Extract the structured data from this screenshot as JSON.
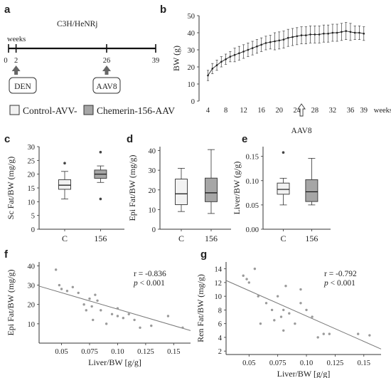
{
  "figure": {
    "panel_labels": [
      "a",
      "b",
      "c",
      "d",
      "e",
      "f",
      "g"
    ],
    "timeline": {
      "title": "C3H/HeNRj",
      "unit_label": "weeks",
      "ticks": [
        0,
        2,
        26,
        39
      ],
      "events": [
        {
          "week": 2,
          "label": "DEN"
        },
        {
          "week": 26,
          "label": "AAV8"
        }
      ]
    },
    "legend": {
      "items": [
        {
          "label": "Control-AVV-",
          "color": "#f2f2f2"
        },
        {
          "label": "Chemerin-156-AAV",
          "color": "#a6a6a6"
        }
      ]
    }
  },
  "chart_data": [
    {
      "panel": "b",
      "type": "line",
      "ylabel": "BW (g)",
      "xlabel": "weeks",
      "x_ticks": [
        4,
        8,
        12,
        16,
        20,
        24,
        28,
        32,
        36,
        39
      ],
      "y_ticks": [
        0,
        10,
        20,
        30,
        40,
        50
      ],
      "xlim": [
        2,
        40
      ],
      "ylim": [
        0,
        50
      ],
      "annotation": "AAV8",
      "annotation_x": 25,
      "x": [
        4,
        5,
        6,
        7,
        8,
        9,
        10,
        11,
        12,
        13,
        14,
        15,
        16,
        17,
        18,
        19,
        20,
        21,
        22,
        23,
        24,
        25,
        26,
        27,
        28,
        29,
        30,
        31,
        32,
        33,
        34,
        35,
        36,
        37,
        38,
        39
      ],
      "series": [
        {
          "values": [
            15,
            19,
            21,
            23,
            24.5,
            26,
            27,
            28,
            29,
            30,
            31,
            32,
            33,
            34,
            34.5,
            35,
            35.5,
            36,
            37,
            37.5,
            38,
            38.5,
            38.5,
            39,
            39,
            39,
            39.5,
            39.5,
            40,
            40,
            40.5,
            41,
            40.5,
            40,
            40,
            39.5
          ],
          "errors": [
            3,
            3,
            3,
            3,
            3,
            3,
            4,
            4,
            4,
            4,
            4,
            4,
            4,
            4,
            4,
            5,
            5,
            5,
            5,
            5,
            5,
            5,
            5,
            5,
            5,
            5,
            5,
            5,
            5,
            5,
            5,
            5,
            5,
            4,
            4,
            4
          ]
        }
      ]
    },
    {
      "panel": "c",
      "type": "box",
      "ylabel": "Sc Fat/BW (mg/g)",
      "categories": [
        "C",
        "156"
      ],
      "ylim": [
        0,
        30
      ],
      "y_ticks": [
        0,
        5,
        10,
        15,
        20,
        25,
        30
      ],
      "boxes": [
        {
          "min": 11,
          "q1": 14.5,
          "median": 16,
          "q3": 18,
          "max": 21,
          "outliers": [
            24
          ]
        },
        {
          "min": 17,
          "q1": 18.5,
          "median": 20,
          "q3": 21.5,
          "max": 23,
          "outliers": [
            28,
            11
          ]
        }
      ]
    },
    {
      "panel": "d",
      "type": "box",
      "ylabel": "Epi Fat/BW (mg/g)",
      "categories": [
        "C",
        "156"
      ],
      "ylim": [
        0,
        42
      ],
      "y_ticks": [
        0,
        10,
        20,
        30,
        40
      ],
      "boxes": [
        {
          "min": 9,
          "q1": 12.5,
          "median": 18,
          "q3": 25.5,
          "max": 31,
          "outliers": []
        },
        {
          "min": 8,
          "q1": 14,
          "median": 18.5,
          "q3": 26,
          "max": 40.5,
          "outliers": []
        }
      ]
    },
    {
      "panel": "e",
      "type": "box",
      "ylabel": "Liver/BW (g/g)",
      "categories": [
        "C",
        "156"
      ],
      "ylim": [
        0,
        0.17
      ],
      "y_ticks": [
        0.0,
        0.05,
        0.1,
        0.15
      ],
      "y_tick_labels": [
        "0.00",
        "0.05",
        "0.10",
        "0.15"
      ],
      "boxes": [
        {
          "min": 0.05,
          "q1": 0.072,
          "median": 0.082,
          "q3": 0.095,
          "max": 0.105,
          "outliers": [
            0.158
          ]
        },
        {
          "min": 0.05,
          "q1": 0.057,
          "median": 0.077,
          "q3": 0.102,
          "max": 0.146,
          "outliers": []
        }
      ]
    },
    {
      "panel": "f",
      "type": "scatter",
      "xlabel": "Liver/BW [g/g]",
      "ylabel": "Epi Fat/BW (mg/g)",
      "xlim": [
        0.03,
        0.165
      ],
      "ylim": [
        0,
        42
      ],
      "x_ticks": [
        0.05,
        0.075,
        0.1,
        0.125,
        0.15
      ],
      "x_tick_labels": [
        "0.05",
        "0.075",
        "0.10",
        "0.125",
        "0.15"
      ],
      "y_ticks": [
        10,
        20,
        30,
        40
      ],
      "annotation": {
        "r": "r = -0.836",
        "p": "< 0.001"
      },
      "fit": {
        "x": [
          0.03,
          0.165
        ],
        "y": [
          29.5,
          6.5
        ]
      },
      "points": [
        [
          0.045,
          38
        ],
        [
          0.048,
          30
        ],
        [
          0.05,
          28
        ],
        [
          0.055,
          27
        ],
        [
          0.06,
          29
        ],
        [
          0.065,
          26
        ],
        [
          0.07,
          20
        ],
        [
          0.072,
          17
        ],
        [
          0.075,
          23
        ],
        [
          0.077,
          19
        ],
        [
          0.08,
          25
        ],
        [
          0.082,
          22
        ],
        [
          0.078,
          12
        ],
        [
          0.085,
          17
        ],
        [
          0.09,
          10
        ],
        [
          0.095,
          15
        ],
        [
          0.1,
          18
        ],
        [
          0.1,
          14
        ],
        [
          0.105,
          13
        ],
        [
          0.11,
          15
        ],
        [
          0.115,
          12
        ],
        [
          0.12,
          8
        ],
        [
          0.13,
          9
        ],
        [
          0.145,
          14
        ],
        [
          0.158,
          8
        ]
      ]
    },
    {
      "panel": "g",
      "type": "scatter",
      "xlabel": "Liver/BW [g/g]",
      "ylabel": "Ren Fat/BW (mg/g)",
      "xlim": [
        0.03,
        0.165
      ],
      "ylim": [
        1.5,
        15
      ],
      "x_ticks": [
        0.05,
        0.075,
        0.1,
        0.125,
        0.15
      ],
      "x_tick_labels": [
        "0.05",
        "0.075",
        "0.10",
        "0.125",
        "0.15"
      ],
      "y_ticks": [
        2,
        4,
        6,
        8,
        10,
        12,
        14
      ],
      "annotation": {
        "r": "r = -0.792",
        "p": "< 0.001"
      },
      "fit": {
        "x": [
          0.03,
          0.165
        ],
        "y": [
          12.3,
          2.3
        ]
      },
      "points": [
        [
          0.045,
          13
        ],
        [
          0.048,
          12.5
        ],
        [
          0.05,
          12
        ],
        [
          0.055,
          14
        ],
        [
          0.058,
          10
        ],
        [
          0.06,
          6
        ],
        [
          0.065,
          9
        ],
        [
          0.07,
          8
        ],
        [
          0.072,
          6.5
        ],
        [
          0.075,
          10
        ],
        [
          0.078,
          7
        ],
        [
          0.08,
          8
        ],
        [
          0.08,
          5
        ],
        [
          0.082,
          11.5
        ],
        [
          0.085,
          7.5
        ],
        [
          0.09,
          6
        ],
        [
          0.095,
          11
        ],
        [
          0.095,
          9
        ],
        [
          0.1,
          8
        ],
        [
          0.105,
          7
        ],
        [
          0.11,
          4
        ],
        [
          0.115,
          4.5
        ],
        [
          0.12,
          4.5
        ],
        [
          0.145,
          4.5
        ],
        [
          0.155,
          4.3
        ]
      ]
    }
  ]
}
